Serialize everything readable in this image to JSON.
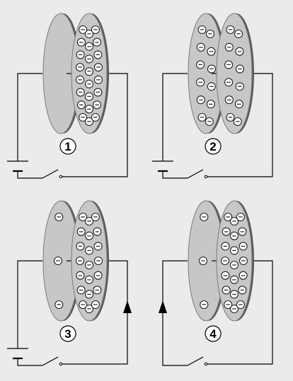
{
  "background": "#ebebeb",
  "colors": {
    "plate_face": "#c7c7c7",
    "plate_rim": "#5a5a5a",
    "wire": "#000000",
    "charge_fill": "#ffffff",
    "charge_stroke": "#222222"
  },
  "charge_symbol": "−",
  "panels": [
    {
      "number": "1",
      "battery": true,
      "arrow": false,
      "back_plate_charges": 0,
      "front_plate_charges": 24
    },
    {
      "number": "2",
      "battery": true,
      "arrow": false,
      "back_plate_charges": 12,
      "front_plate_charges": 12
    },
    {
      "number": "3",
      "battery": true,
      "arrow": true,
      "back_plate_charges": 3,
      "front_plate_charges": 21
    },
    {
      "number": "4",
      "battery": false,
      "arrow": true,
      "back_plate_charges": 3,
      "front_plate_charges": 21
    }
  ]
}
